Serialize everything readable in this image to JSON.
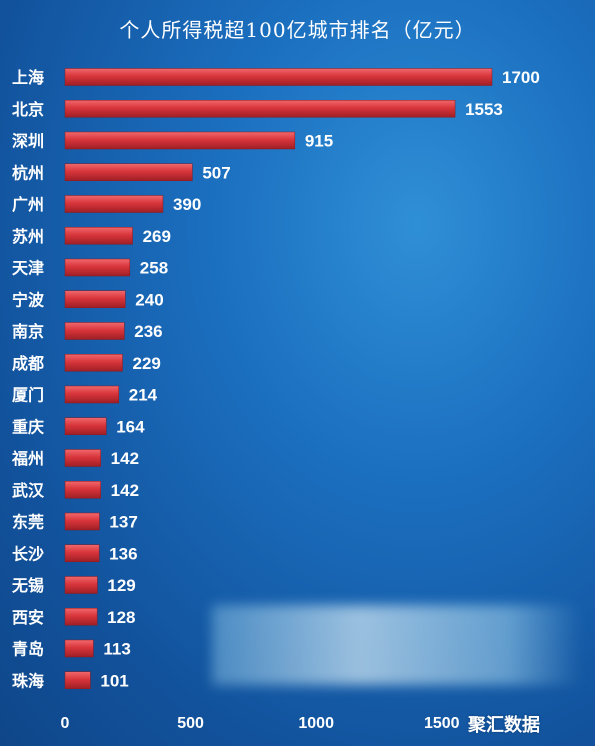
{
  "chart_data": {
    "type": "bar",
    "orientation": "horizontal",
    "title": "个人所得税超100亿城市排名（亿元）",
    "categories": [
      "上海",
      "北京",
      "深圳",
      "杭州",
      "广州",
      "苏州",
      "天津",
      "宁波",
      "南京",
      "成都",
      "厦门",
      "重庆",
      "福州",
      "武汉",
      "东莞",
      "长沙",
      "无锡",
      "西安",
      "青岛",
      "珠海"
    ],
    "values": [
      1700,
      1553,
      915,
      507,
      390,
      269,
      258,
      240,
      236,
      229,
      214,
      164,
      142,
      142,
      137,
      136,
      129,
      128,
      113,
      101
    ],
    "xlim": [
      0,
      1700
    ],
    "xticks": [
      "0",
      "500",
      "1000",
      "1500"
    ],
    "grid": false,
    "bar_color": "#d8353b"
  },
  "watermark": "聚汇数据"
}
